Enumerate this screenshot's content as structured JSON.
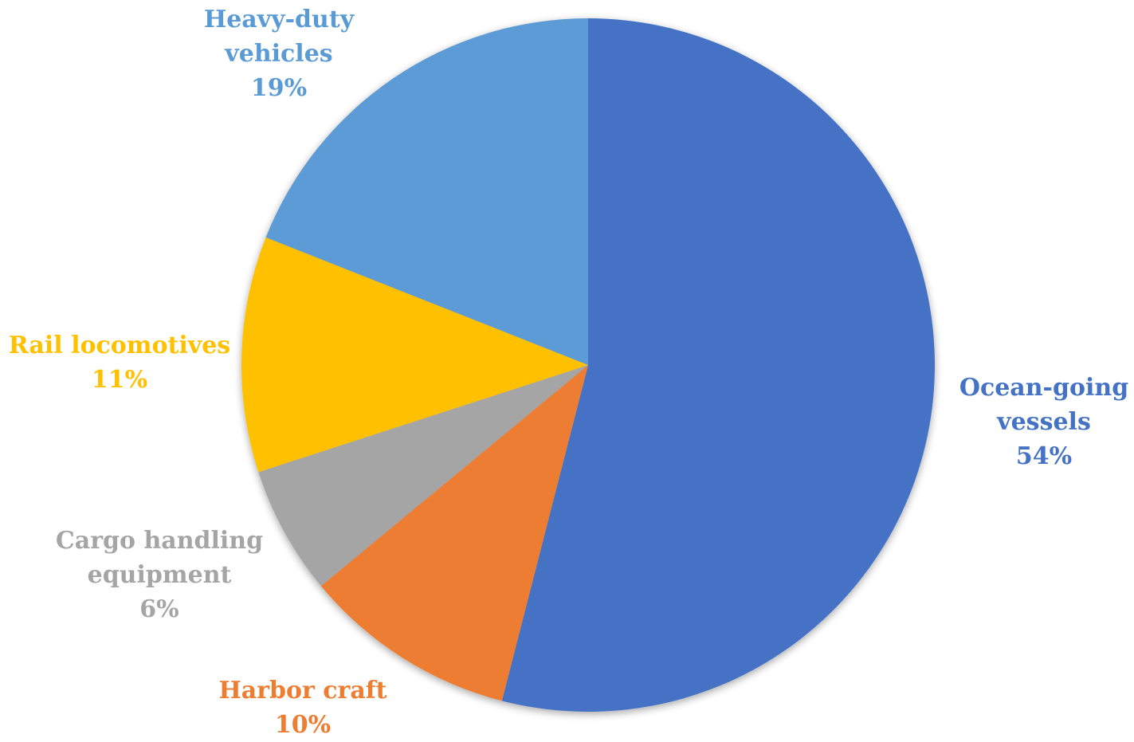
{
  "chart_data": {
    "type": "pie",
    "title": "",
    "start_angle_deg": 0,
    "direction": "clockwise",
    "slices": [
      {
        "lines": [
          "Ocean-going",
          "vessels"
        ],
        "value": 54,
        "value_label": "54%",
        "color": "#4472C4"
      },
      {
        "lines": [
          "Harbor craft"
        ],
        "value": 10,
        "value_label": "10%",
        "color": "#ED7D31"
      },
      {
        "lines": [
          "Cargo handling",
          "equipment"
        ],
        "value": 6,
        "value_label": "6%",
        "color": "#A5A5A5"
      },
      {
        "lines": [
          "Rail locomotives"
        ],
        "value": 11,
        "value_label": "11%",
        "color": "#FFC000"
      },
      {
        "lines": [
          "Heavy-duty",
          "vehicles"
        ],
        "value": 19,
        "value_label": "19%",
        "color": "#5B9BD5"
      }
    ]
  }
}
